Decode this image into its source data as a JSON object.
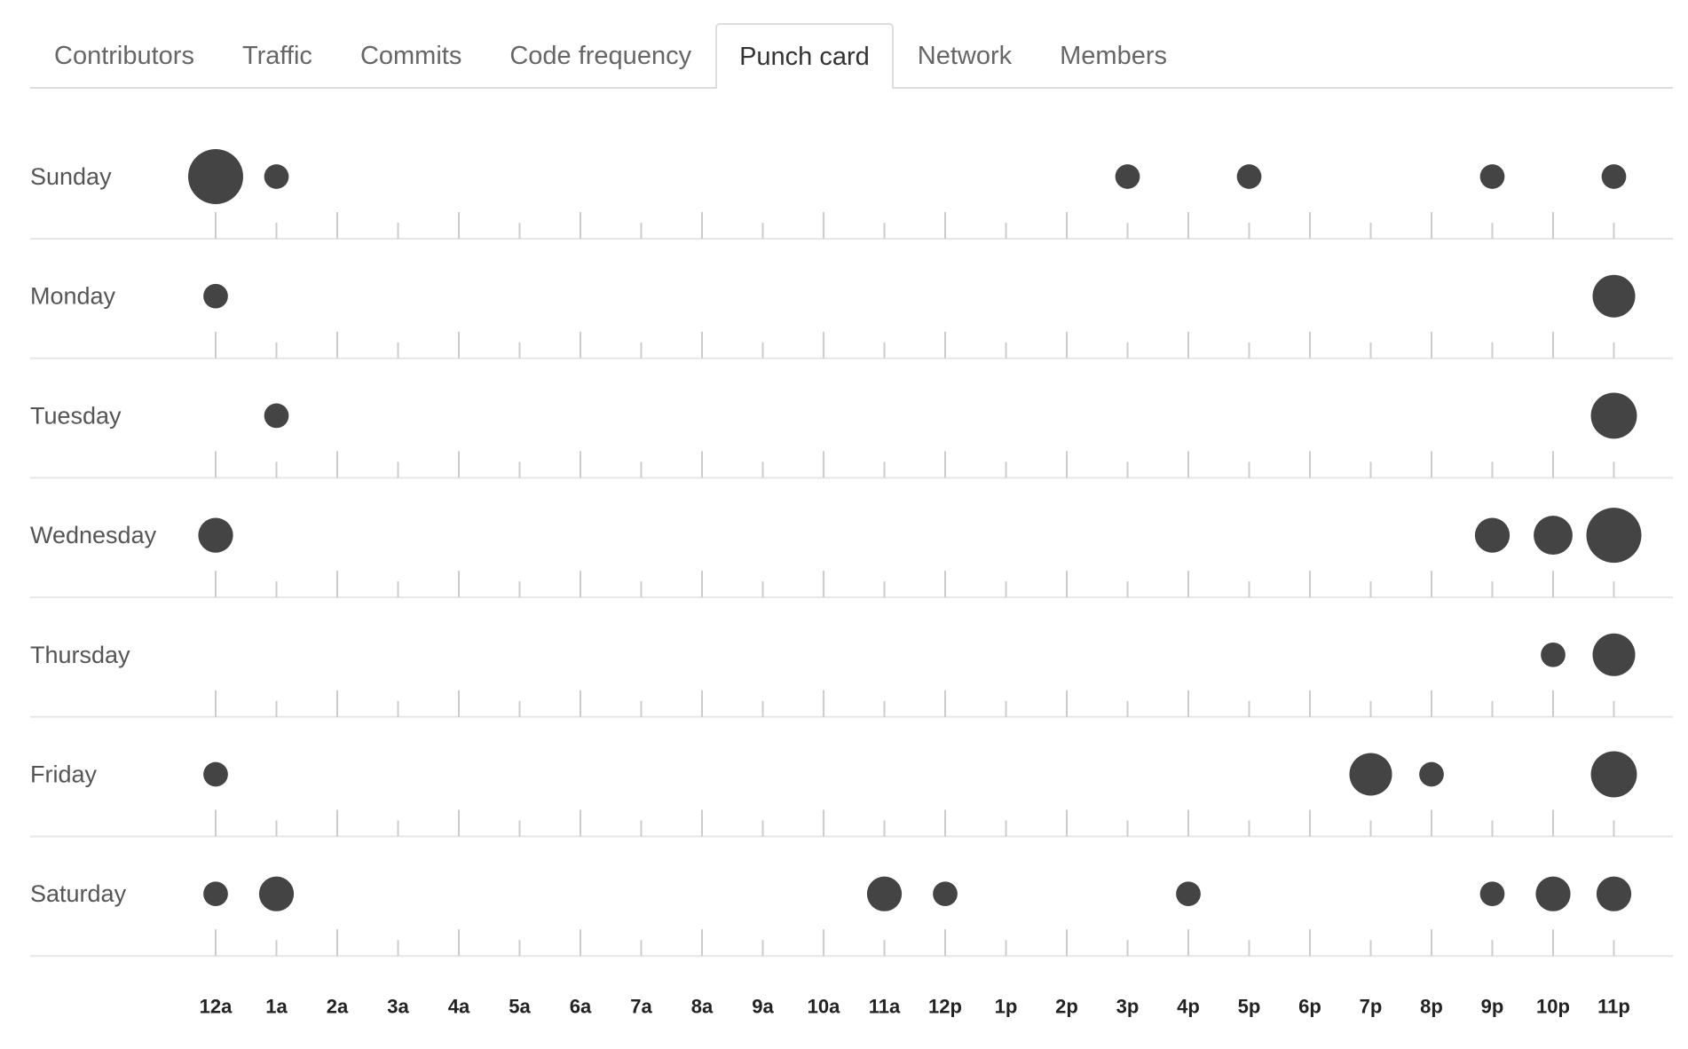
{
  "tabs": [
    {
      "label": "Contributors",
      "active": false
    },
    {
      "label": "Traffic",
      "active": false
    },
    {
      "label": "Commits",
      "active": false
    },
    {
      "label": "Code frequency",
      "active": false
    },
    {
      "label": "Punch card",
      "active": true
    },
    {
      "label": "Network",
      "active": false
    },
    {
      "label": "Members",
      "active": false
    }
  ],
  "colors": {
    "dot": "#444444",
    "grid": "#e6e6e6",
    "tick": "#cccccc",
    "tab_border": "#dddddd"
  },
  "chart_data": {
    "type": "scatter",
    "days": [
      "Sunday",
      "Monday",
      "Tuesday",
      "Wednesday",
      "Thursday",
      "Friday",
      "Saturday"
    ],
    "hours": [
      "12a",
      "1a",
      "2a",
      "3a",
      "4a",
      "5a",
      "6a",
      "7a",
      "8a",
      "9a",
      "10a",
      "11a",
      "12p",
      "1p",
      "2p",
      "3p",
      "4p",
      "5p",
      "6p",
      "7p",
      "8p",
      "9p",
      "10p",
      "11p"
    ],
    "size_max": 10,
    "points": [
      {
        "day": "Sunday",
        "hour": "12a",
        "value": 10
      },
      {
        "day": "Sunday",
        "hour": "1a",
        "value": 2
      },
      {
        "day": "Sunday",
        "hour": "3p",
        "value": 2
      },
      {
        "day": "Sunday",
        "hour": "5p",
        "value": 2
      },
      {
        "day": "Sunday",
        "hour": "9p",
        "value": 2
      },
      {
        "day": "Sunday",
        "hour": "11p",
        "value": 2
      },
      {
        "day": "Monday",
        "hour": "12a",
        "value": 2
      },
      {
        "day": "Monday",
        "hour": "11p",
        "value": 6
      },
      {
        "day": "Tuesday",
        "hour": "1a",
        "value": 2
      },
      {
        "day": "Tuesday",
        "hour": "11p",
        "value": 7
      },
      {
        "day": "Wednesday",
        "hour": "12a",
        "value": 4
      },
      {
        "day": "Wednesday",
        "hour": "9p",
        "value": 4
      },
      {
        "day": "Wednesday",
        "hour": "10p",
        "value": 5
      },
      {
        "day": "Wednesday",
        "hour": "11p",
        "value": 10
      },
      {
        "day": "Thursday",
        "hour": "10p",
        "value": 2
      },
      {
        "day": "Thursday",
        "hour": "11p",
        "value": 6
      },
      {
        "day": "Friday",
        "hour": "12a",
        "value": 2
      },
      {
        "day": "Friday",
        "hour": "7p",
        "value": 6
      },
      {
        "day": "Friday",
        "hour": "8p",
        "value": 2
      },
      {
        "day": "Friday",
        "hour": "11p",
        "value": 7
      },
      {
        "day": "Saturday",
        "hour": "12a",
        "value": 2
      },
      {
        "day": "Saturday",
        "hour": "1a",
        "value": 4
      },
      {
        "day": "Saturday",
        "hour": "11a",
        "value": 4
      },
      {
        "day": "Saturday",
        "hour": "12p",
        "value": 2
      },
      {
        "day": "Saturday",
        "hour": "4p",
        "value": 2
      },
      {
        "day": "Saturday",
        "hour": "9p",
        "value": 2
      },
      {
        "day": "Saturday",
        "hour": "10p",
        "value": 4
      },
      {
        "day": "Saturday",
        "hour": "11p",
        "value": 4
      }
    ],
    "title": "",
    "xlabel": "",
    "ylabel": "",
    "grid": true,
    "legend": "none"
  }
}
